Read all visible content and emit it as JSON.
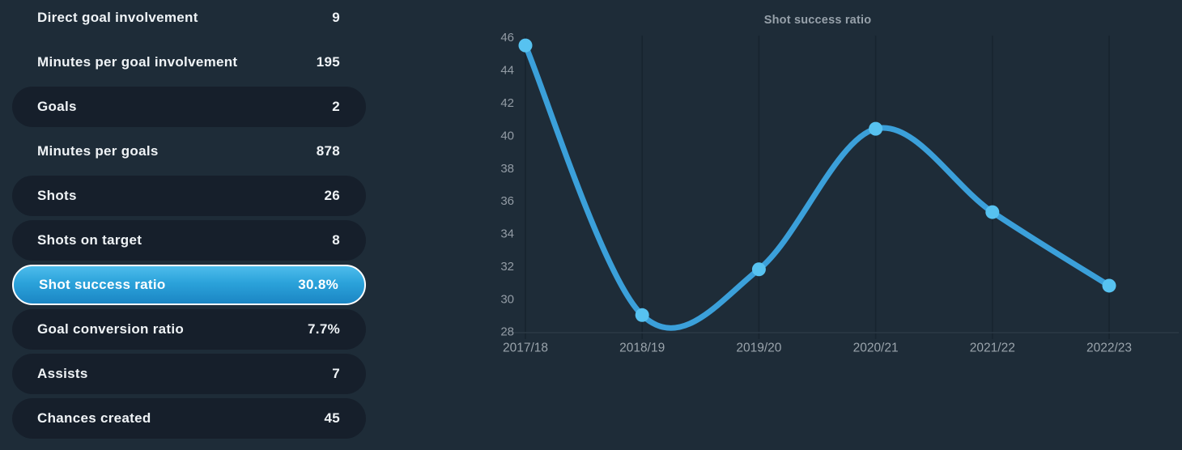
{
  "stats_panel": {
    "rows": [
      {
        "label": "Direct goal involvement",
        "value": "9",
        "pill": false,
        "selected": false
      },
      {
        "label": "Minutes per goal involvement",
        "value": "195",
        "pill": false,
        "selected": false
      },
      {
        "label": "Goals",
        "value": "2",
        "pill": true,
        "selected": false
      },
      {
        "label": "Minutes per goals",
        "value": "878",
        "pill": false,
        "selected": false
      },
      {
        "label": "Shots",
        "value": "26",
        "pill": true,
        "selected": false
      },
      {
        "label": "Shots on target",
        "value": "8",
        "pill": true,
        "selected": false
      },
      {
        "label": "Shot success ratio",
        "value": "30.8%",
        "pill": true,
        "selected": true
      },
      {
        "label": "Goal conversion ratio",
        "value": "7.7%",
        "pill": true,
        "selected": false
      },
      {
        "label": "Assists",
        "value": "7",
        "pill": true,
        "selected": false
      },
      {
        "label": "Chances created",
        "value": "45",
        "pill": true,
        "selected": false
      }
    ]
  },
  "chart_data": {
    "type": "line",
    "title": "Shot success ratio",
    "categories": [
      "2017/18",
      "2018/19",
      "2019/20",
      "2020/21",
      "2021/22",
      "2022/23"
    ],
    "values": [
      45.5,
      29.0,
      31.8,
      40.4,
      35.3,
      30.8
    ],
    "ylim": [
      28,
      46
    ],
    "y_tick_step": 2,
    "grid": "vertical-only",
    "legend": "none",
    "line_color": "#3BA0DA",
    "marker_color": "#57C2F0"
  }
}
